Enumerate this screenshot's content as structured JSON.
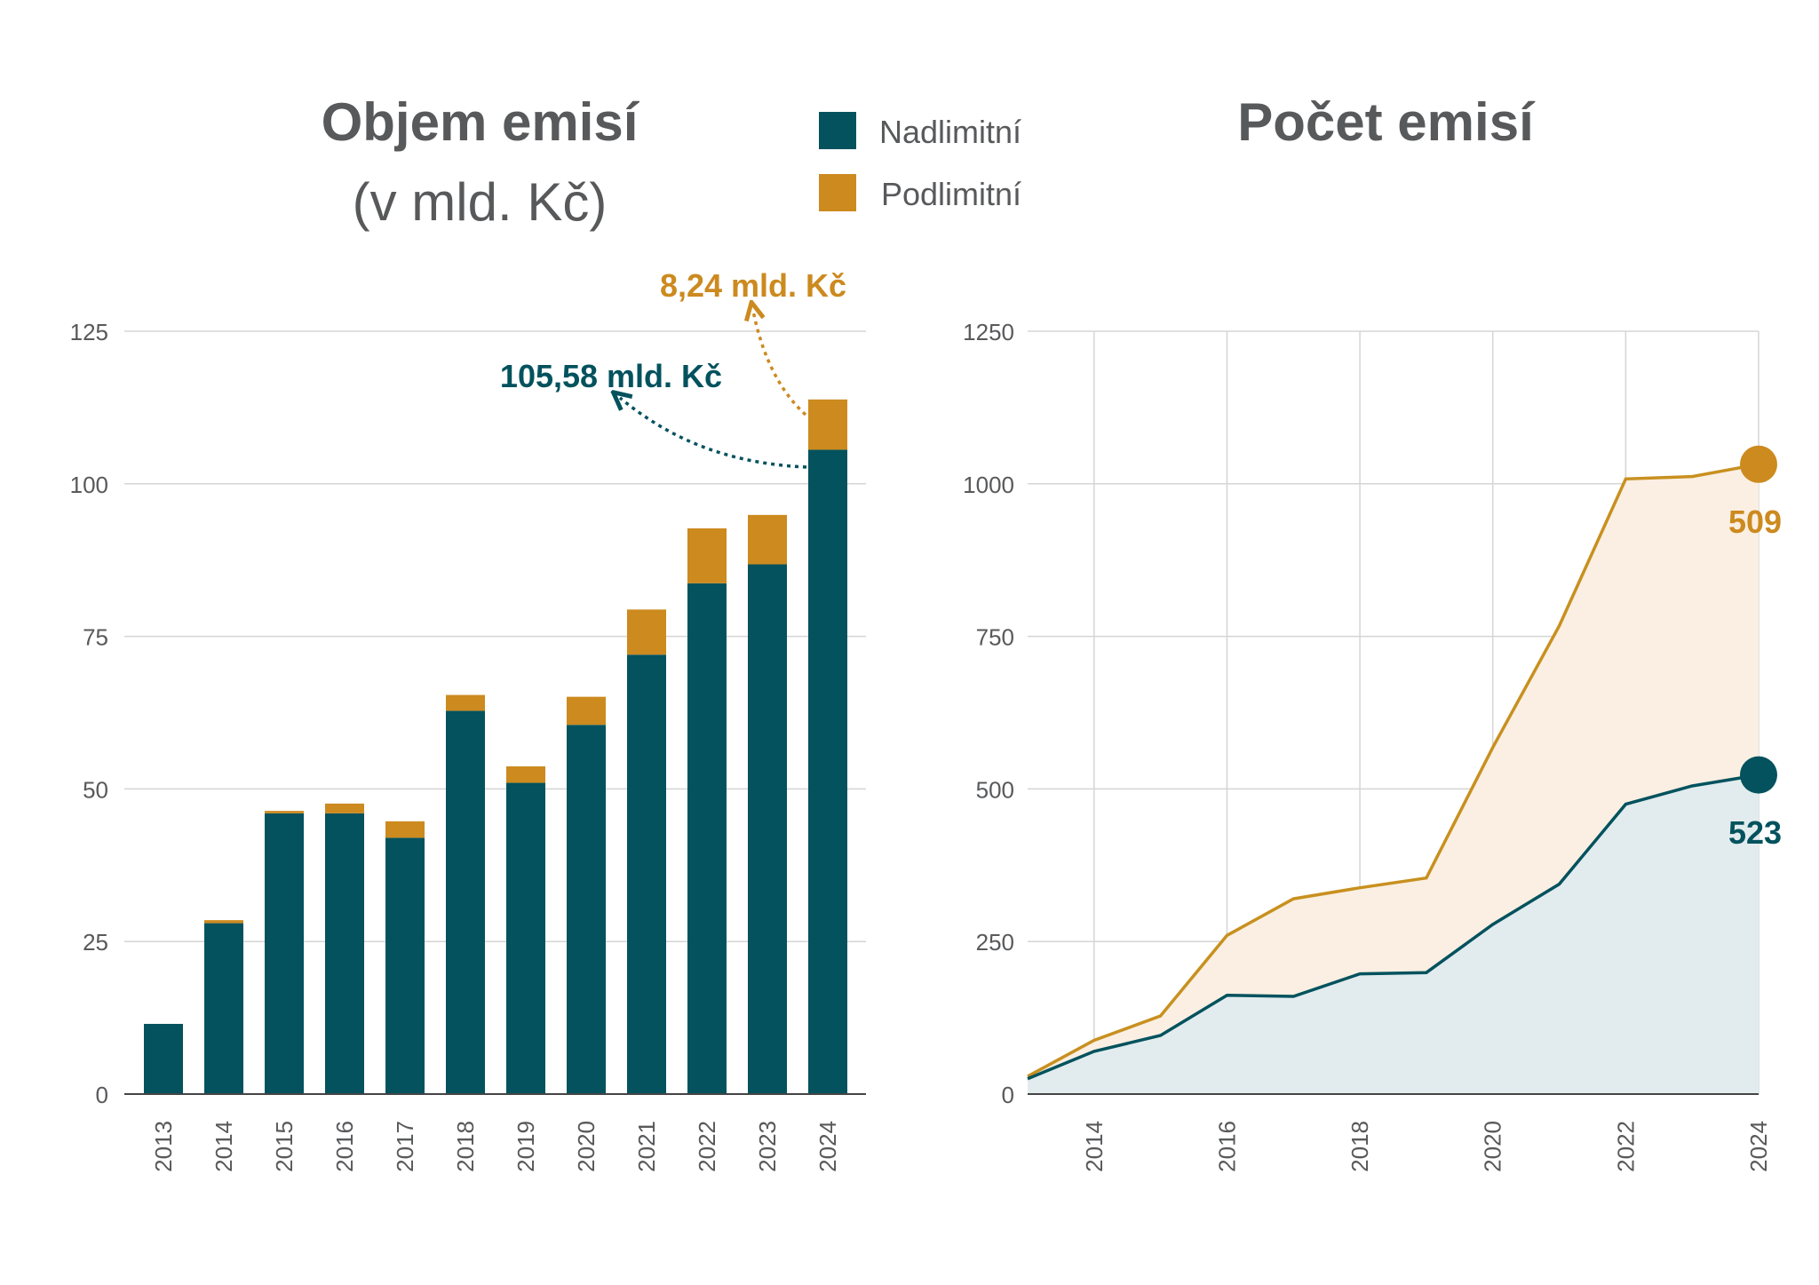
{
  "colors": {
    "nadlimitni": "#03525e",
    "podlimitni": "#cc8a1f",
    "podlimitni_line": "#c8901f",
    "nadlimitni_fill": "#e2ecee",
    "podlimitni_fill": "#faefe2"
  },
  "left_title": "Objem emisí",
  "left_subtitle": "(v mld. Kč)",
  "right_title": "Počet emisí",
  "legend": [
    {
      "label": "Nadlimitní",
      "color": "#03525e"
    },
    {
      "label": "Podlimitní",
      "color": "#cc8a1f"
    }
  ],
  "chart_data": [
    {
      "type": "bar",
      "stacked": true,
      "title": "Objem emisí",
      "subtitle": "(v mld. Kč)",
      "categories": [
        "2013",
        "2014",
        "2015",
        "2016",
        "2017",
        "2018",
        "2019",
        "2020",
        "2021",
        "2022",
        "2023",
        "2024"
      ],
      "series": [
        {
          "name": "Nadlimitní",
          "values": [
            11.5,
            28,
            46,
            46,
            42,
            62.8,
            51,
            60.5,
            72,
            83.7,
            86.8,
            105.58
          ]
        },
        {
          "name": "Podlimitní",
          "values": [
            0,
            0.5,
            0.4,
            1.6,
            2.7,
            2.6,
            2.7,
            4.6,
            7.4,
            9.0,
            8.1,
            8.24
          ]
        }
      ],
      "ylim": [
        0,
        125
      ],
      "yticks": [
        0,
        25,
        50,
        75,
        100,
        125
      ],
      "grid": true,
      "annotations": [
        {
          "text": "105,58 mld. Kč",
          "series": "Nadlimitní",
          "category": "2024"
        },
        {
          "text": "8,24 mld. Kč",
          "series": "Podlimitní",
          "category": "2024"
        }
      ]
    },
    {
      "type": "area",
      "stacked": true,
      "title": "Počet emisí",
      "x": [
        2013,
        2014,
        2015,
        2016,
        2017,
        2018,
        2019,
        2020,
        2021,
        2022,
        2023,
        2024
      ],
      "xticks": [
        "2014",
        "2016",
        "2018",
        "2020",
        "2022",
        "2024"
      ],
      "series": [
        {
          "name": "Nadlimitní",
          "values": [
            25,
            70,
            96,
            162,
            160,
            197,
            199,
            278,
            344,
            475,
            505,
            523
          ]
        },
        {
          "name": "Podlimitní",
          "values": [
            4,
            18,
            32,
            98,
            160,
            141,
            155,
            290,
            423,
            533,
            507,
            509
          ]
        }
      ],
      "cumulative_top": [
        29,
        88,
        128,
        260,
        320,
        338,
        354,
        568,
        767,
        1008,
        1012,
        1032
      ],
      "ylim": [
        0,
        1250
      ],
      "yticks": [
        0,
        250,
        500,
        750,
        1000,
        1250
      ],
      "grid": true,
      "end_labels": [
        {
          "text": "509",
          "series": "Podlimitní"
        },
        {
          "text": "523",
          "series": "Nadlimitní"
        }
      ]
    }
  ]
}
